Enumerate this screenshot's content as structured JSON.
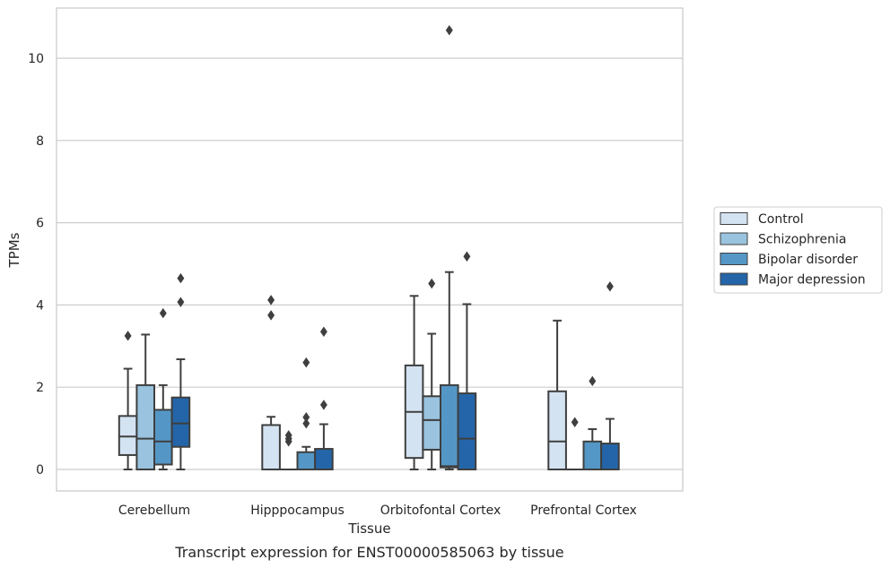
{
  "chart_data": {
    "type": "box",
    "title": "Transcript expression for ENST00000585063 by tissue",
    "xlabel": "Tissue",
    "ylabel": "TPMs",
    "ylim": [
      -0.5,
      11.25
    ],
    "yticks": [
      0,
      2,
      4,
      6,
      8,
      10
    ],
    "grid": true,
    "legend_position": "right",
    "categories": [
      "Cerebellum",
      "Hipppocampus",
      "Orbitofontal Cortex",
      "Prefrontal Cortex"
    ],
    "series": [
      {
        "name": "Control",
        "color": "#d4e3f2",
        "boxes": [
          {
            "whisker_low": 0,
            "q1": 0.35,
            "median": 0.8,
            "q3": 1.3,
            "whisker_high": 2.45,
            "outliers": [
              3.25
            ]
          },
          {
            "whisker_low": 0,
            "q1": 0,
            "median": 0,
            "q3": 1.08,
            "whisker_high": 1.28,
            "outliers": [
              3.75,
              4.12
            ]
          },
          {
            "whisker_low": 0,
            "q1": 0.28,
            "median": 1.4,
            "q3": 2.53,
            "whisker_high": 4.22,
            "outliers": []
          },
          {
            "whisker_low": 0,
            "q1": 0,
            "median": 0.68,
            "q3": 1.9,
            "whisker_high": 3.62,
            "outliers": []
          }
        ]
      },
      {
        "name": "Schizophrenia",
        "color": "#99c3de",
        "boxes": [
          {
            "whisker_low": 0,
            "q1": 0,
            "median": 0.75,
            "q3": 2.05,
            "whisker_high": 3.28,
            "outliers": []
          },
          {
            "whisker_low": 0,
            "q1": 0,
            "median": 0,
            "q3": 0,
            "whisker_high": 0,
            "outliers": [
              0.68,
              0.75,
              0.83
            ]
          },
          {
            "whisker_low": 0,
            "q1": 0.48,
            "median": 1.2,
            "q3": 1.78,
            "whisker_high": 3.3,
            "outliers": [
              4.52
            ]
          },
          {
            "whisker_low": 0,
            "q1": 0,
            "median": 0,
            "q3": 0,
            "whisker_high": 0,
            "outliers": [
              1.15
            ]
          }
        ]
      },
      {
        "name": "Bipolar disorder",
        "color": "#5497c6",
        "boxes": [
          {
            "whisker_low": 0,
            "q1": 0.12,
            "median": 0.68,
            "q3": 1.45,
            "whisker_high": 2.05,
            "outliers": [
              3.8
            ]
          },
          {
            "whisker_low": 0,
            "q1": 0,
            "median": 0,
            "q3": 0.42,
            "whisker_high": 0.55,
            "outliers": [
              1.12,
              1.27,
              2.6
            ]
          },
          {
            "whisker_low": 0,
            "q1": 0.05,
            "median": 0.08,
            "q3": 2.05,
            "whisker_high": 4.8,
            "outliers": [
              10.68
            ]
          },
          {
            "whisker_low": 0,
            "q1": 0,
            "median": 0,
            "q3": 0.68,
            "whisker_high": 0.98,
            "outliers": [
              2.15
            ]
          }
        ]
      },
      {
        "name": "Major depression",
        "color": "#2465a9",
        "boxes": [
          {
            "whisker_low": 0,
            "q1": 0.55,
            "median": 1.12,
            "q3": 1.75,
            "whisker_high": 2.68,
            "outliers": [
              4.07,
              4.65
            ]
          },
          {
            "whisker_low": 0,
            "q1": 0,
            "median": 0,
            "q3": 0.5,
            "whisker_high": 1.1,
            "outliers": [
              1.57,
              3.35
            ]
          },
          {
            "whisker_low": 0,
            "q1": 0,
            "median": 0.75,
            "q3": 1.85,
            "whisker_high": 4.02,
            "outliers": [
              5.18
            ]
          },
          {
            "whisker_low": 0,
            "q1": 0,
            "median": 0,
            "q3": 0.63,
            "whisker_high": 1.23,
            "outliers": [
              4.45
            ]
          }
        ]
      }
    ]
  },
  "colors": {
    "grid": "#cccccc",
    "frame": "#cccccc",
    "box_edge": "#3f3f3f"
  }
}
